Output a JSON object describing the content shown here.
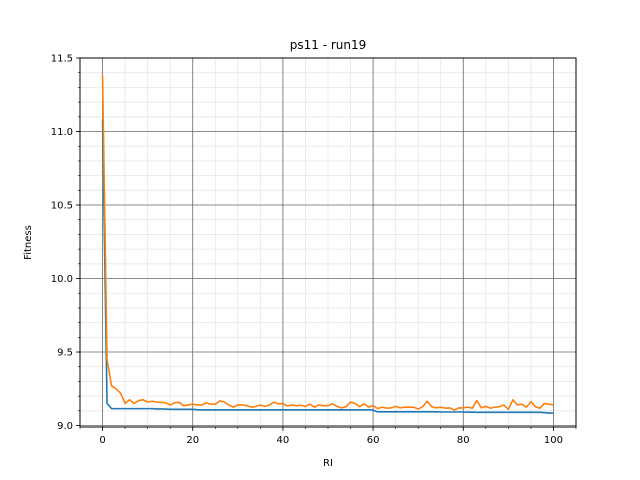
{
  "chart_data": {
    "type": "line",
    "title": "ps11 - run19",
    "xlabel": "RI",
    "ylabel": "Fitness",
    "xlim": [
      -5,
      105
    ],
    "ylim": [
      8.99,
      11.5
    ],
    "x_ticks": [
      0,
      20,
      40,
      60,
      80,
      100
    ],
    "x_tick_labels": [
      "0",
      "20",
      "40",
      "60",
      "80",
      "100"
    ],
    "y_ticks": [
      9.0,
      9.5,
      10.0,
      10.5,
      11.0,
      11.5
    ],
    "y_tick_labels": [
      "9.0",
      "9.5",
      "10.0",
      "10.5",
      "11.0",
      "11.5"
    ],
    "grid": "major and minor",
    "x": [
      0,
      1,
      2,
      3,
      4,
      5,
      6,
      7,
      8,
      9,
      10,
      11,
      12,
      13,
      14,
      15,
      16,
      17,
      18,
      19,
      20,
      21,
      22,
      23,
      24,
      25,
      26,
      27,
      28,
      29,
      30,
      31,
      32,
      33,
      34,
      35,
      36,
      37,
      38,
      39,
      40,
      41,
      42,
      43,
      44,
      45,
      46,
      47,
      48,
      49,
      50,
      51,
      52,
      53,
      54,
      55,
      56,
      57,
      58,
      59,
      60,
      61,
      62,
      63,
      64,
      65,
      66,
      67,
      68,
      69,
      70,
      71,
      72,
      73,
      74,
      75,
      76,
      77,
      78,
      79,
      80,
      81,
      82,
      83,
      84,
      85,
      86,
      87,
      88,
      89,
      90,
      91,
      92,
      93,
      94,
      95,
      96,
      97,
      98,
      99,
      100
    ],
    "series": [
      {
        "color": "#1f77b4",
        "values": [
          11.08,
          9.15,
          9.115,
          9.115,
          9.115,
          9.115,
          9.115,
          9.115,
          9.115,
          9.115,
          9.115,
          9.115,
          9.113,
          9.113,
          9.112,
          9.11,
          9.11,
          9.11,
          9.11,
          9.11,
          9.11,
          9.108,
          9.107,
          9.107,
          9.107,
          9.107,
          9.107,
          9.107,
          9.107,
          9.107,
          9.107,
          9.107,
          9.107,
          9.107,
          9.107,
          9.107,
          9.107,
          9.107,
          9.107,
          9.107,
          9.107,
          9.107,
          9.107,
          9.107,
          9.107,
          9.107,
          9.107,
          9.107,
          9.107,
          9.107,
          9.107,
          9.107,
          9.107,
          9.107,
          9.107,
          9.107,
          9.107,
          9.107,
          9.107,
          9.107,
          9.105,
          9.093,
          9.093,
          9.093,
          9.093,
          9.093,
          9.093,
          9.093,
          9.093,
          9.093,
          9.093,
          9.093,
          9.093,
          9.093,
          9.093,
          9.092,
          9.092,
          9.092,
          9.092,
          9.092,
          9.092,
          9.091,
          9.091,
          9.09,
          9.09,
          9.09,
          9.09,
          9.09,
          9.09,
          9.09,
          9.09,
          9.09,
          9.09,
          9.09,
          9.09,
          9.09,
          9.09,
          9.09,
          9.088,
          9.085,
          9.085
        ]
      },
      {
        "color": "#ff7f0e",
        "values": [
          11.38,
          9.45,
          9.27,
          9.25,
          9.22,
          9.15,
          9.175,
          9.15,
          9.17,
          9.175,
          9.16,
          9.165,
          9.16,
          9.158,
          9.155,
          9.14,
          9.155,
          9.158,
          9.135,
          9.14,
          9.145,
          9.14,
          9.14,
          9.155,
          9.145,
          9.145,
          9.168,
          9.16,
          9.14,
          9.125,
          9.14,
          9.14,
          9.135,
          9.125,
          9.13,
          9.14,
          9.13,
          9.14,
          9.158,
          9.148,
          9.15,
          9.133,
          9.14,
          9.135,
          9.138,
          9.13,
          9.145,
          9.125,
          9.14,
          9.135,
          9.135,
          9.148,
          9.13,
          9.12,
          9.128,
          9.16,
          9.15,
          9.128,
          9.148,
          9.125,
          9.135,
          9.115,
          9.125,
          9.118,
          9.12,
          9.13,
          9.12,
          9.125,
          9.125,
          9.125,
          9.112,
          9.128,
          9.165,
          9.128,
          9.12,
          9.125,
          9.118,
          9.12,
          9.105,
          9.12,
          9.12,
          9.125,
          9.118,
          9.17,
          9.12,
          9.13,
          9.118,
          9.125,
          9.128,
          9.14,
          9.11,
          9.175,
          9.14,
          9.145,
          9.125,
          9.162,
          9.128,
          9.118,
          9.15,
          9.145,
          9.14
        ]
      }
    ]
  }
}
